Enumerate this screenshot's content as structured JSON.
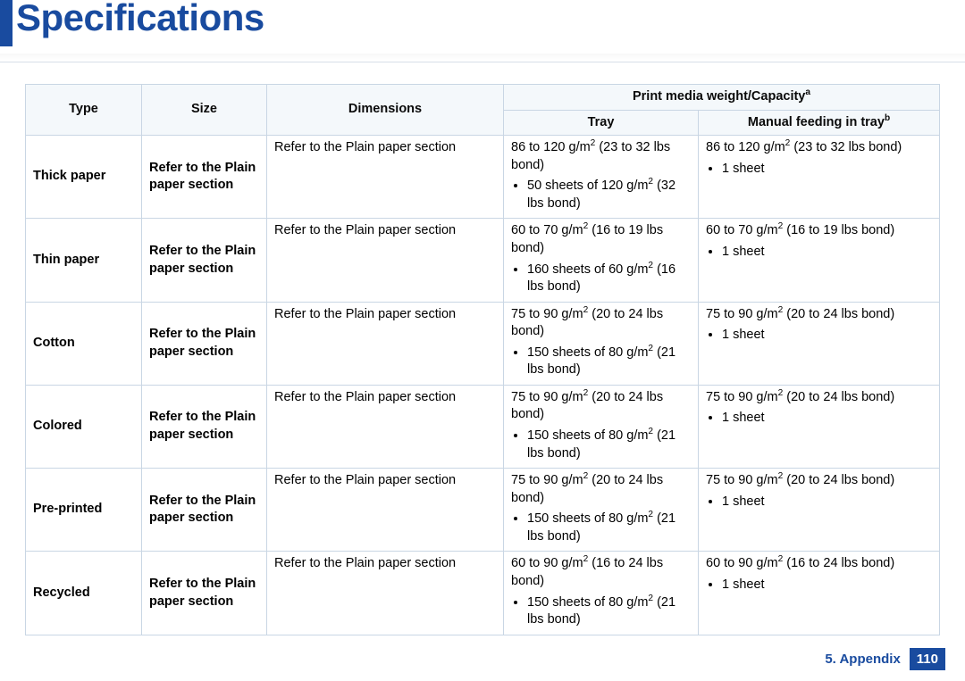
{
  "title": "Specifications",
  "colors": {
    "accent": "#194b9f",
    "header_bg": "#f4f8fb",
    "border": "#c9d6e4",
    "text": "#000000",
    "page_bg": "#ffffff"
  },
  "footer": {
    "section": "5.  Appendix",
    "page": "110"
  },
  "table": {
    "headers": {
      "type": "Type",
      "size": "Size",
      "dimensions": "Dimensions",
      "weight_group": "Print media weight/Capacity",
      "weight_group_sup": "a",
      "tray": "Tray",
      "manual": "Manual feeding in tray",
      "manual_sup": "b"
    },
    "rows": [
      {
        "type": "Thick paper",
        "size": "Refer to the Plain paper section",
        "dimensions": "Refer to the Plain paper section",
        "tray_line": "86 to 120 g/m² (23 to 32 lbs bond)",
        "tray_bullet": "50 sheets of 120 g/m² (32 lbs bond)",
        "manual_line": "86 to 120 g/m² (23 to 32 lbs bond)",
        "manual_bullet": "1 sheet"
      },
      {
        "type": "Thin paper",
        "size": "Refer to the Plain paper section",
        "dimensions": "Refer to the Plain paper section",
        "tray_line": "60 to 70 g/m² (16 to 19 lbs bond)",
        "tray_bullet": "160 sheets of 60 g/m² (16 lbs bond)",
        "manual_line": "60 to 70 g/m² (16 to 19 lbs bond)",
        "manual_bullet": "1 sheet"
      },
      {
        "type": "Cotton",
        "size": "Refer to the Plain paper section",
        "dimensions": "Refer to the Plain paper section",
        "tray_line": "75 to 90 g/m² (20 to 24 lbs bond)",
        "tray_bullet": "150 sheets of 80 g/m² (21 lbs bond)",
        "manual_line": "75 to 90 g/m² (20 to 24 lbs bond)",
        "manual_bullet": "1 sheet"
      },
      {
        "type": "Colored",
        "size": "Refer to the Plain paper section",
        "dimensions": "Refer to the Plain paper section",
        "tray_line": "75 to 90 g/m² (20 to 24 lbs bond)",
        "tray_bullet": "150 sheets of 80 g/m² (21 lbs bond)",
        "manual_line": "75 to 90 g/m² (20 to 24 lbs bond)",
        "manual_bullet": "1 sheet"
      },
      {
        "type": "Pre-printed",
        "size": "Refer to the Plain paper section",
        "dimensions": "Refer to the Plain paper section",
        "tray_line": "75 to 90 g/m² (20 to 24 lbs bond)",
        "tray_bullet": "150 sheets of 80 g/m² (21 lbs bond)",
        "manual_line": "75 to 90 g/m² (20 to 24 lbs bond)",
        "manual_bullet": "1 sheet"
      },
      {
        "type": "Recycled",
        "size": "Refer to the Plain paper section",
        "dimensions": "Refer to the Plain paper section",
        "tray_line": "60 to 90 g/m² (16 to 24 lbs bond)",
        "tray_bullet": "150 sheets of 80 g/m² (21 lbs bond)",
        "manual_line": "60 to 90 g/m² (16 to 24 lbs bond)",
        "manual_bullet": "1 sheet"
      }
    ]
  }
}
